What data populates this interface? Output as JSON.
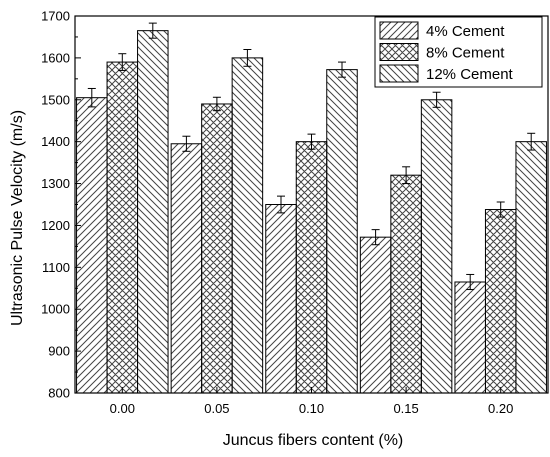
{
  "chart_data": {
    "type": "bar",
    "title": "",
    "xlabel": "Juncus fibers content (%)",
    "ylabel": "Ultrasonic Pulse Velocity (m/s)",
    "categories": [
      "0.00",
      "0.05",
      "0.10",
      "0.15",
      "0.20"
    ],
    "ylim": [
      800,
      1700
    ],
    "yticks": [
      "800",
      "900",
      "1000",
      "1100",
      "1200",
      "1300",
      "1400",
      "1500",
      "1600",
      "1700"
    ],
    "grid": false,
    "legend_position": "top-right",
    "series": [
      {
        "name": "4% Cement",
        "values": [
          1505,
          1395,
          1250,
          1172,
          1065
        ],
        "errors": [
          22,
          18,
          20,
          18,
          18
        ],
        "pattern": "diag-up"
      },
      {
        "name": "8% Cement",
        "values": [
          1590,
          1490,
          1400,
          1320,
          1238
        ],
        "errors": [
          20,
          16,
          18,
          20,
          18
        ],
        "pattern": "cross"
      },
      {
        "name": "12% Cement",
        "values": [
          1665,
          1600,
          1572,
          1500,
          1400
        ],
        "errors": [
          18,
          20,
          18,
          18,
          20
        ],
        "pattern": "diag-down"
      }
    ]
  }
}
